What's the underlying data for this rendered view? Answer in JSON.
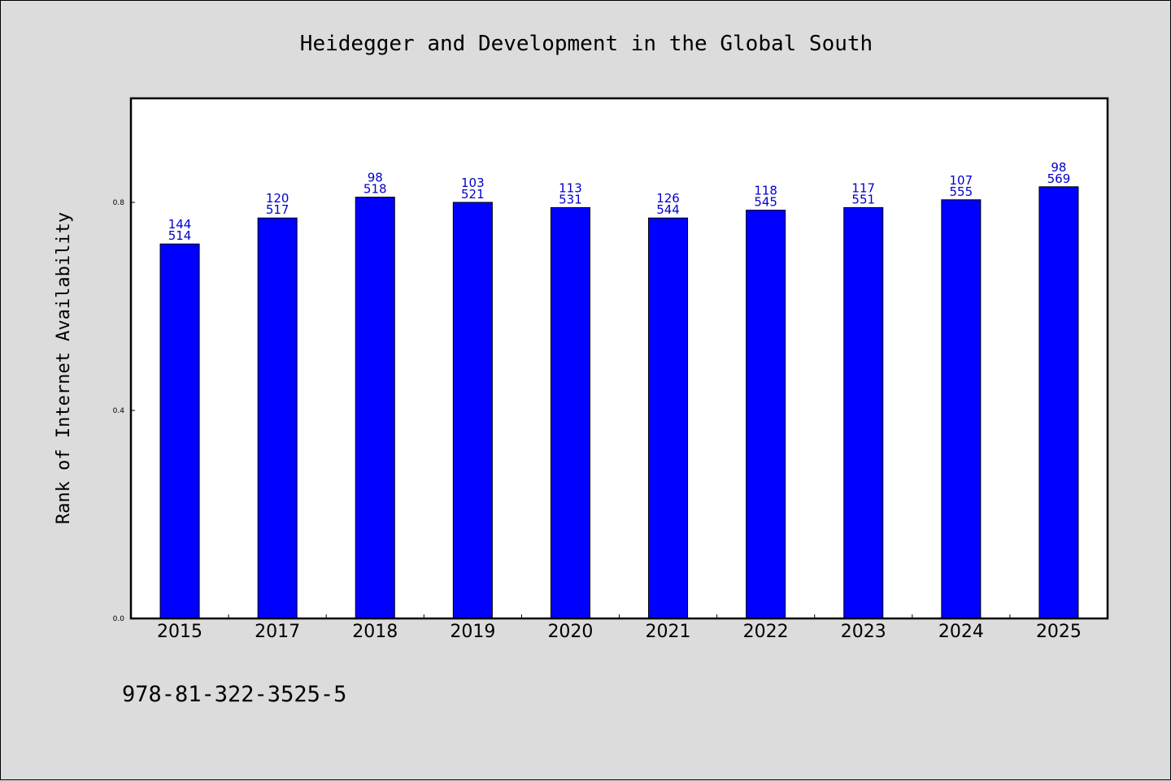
{
  "chart_data": {
    "type": "bar",
    "title": "Heidegger and Development in the Global South",
    "xlabel": "",
    "ylabel": "Rank of Internet Availability",
    "categories": [
      "2015",
      "2017",
      "2018",
      "2019",
      "2020",
      "2021",
      "2022",
      "2023",
      "2024",
      "2025"
    ],
    "values": [
      0.72,
      0.77,
      0.81,
      0.8,
      0.79,
      0.77,
      0.785,
      0.79,
      0.805,
      0.83
    ],
    "label_top": [
      "144",
      "120",
      "98",
      "103",
      "113",
      "126",
      "118",
      "117",
      "107",
      "98"
    ],
    "label_bottom": [
      "514",
      "517",
      "518",
      "521",
      "531",
      "544",
      "545",
      "551",
      "555",
      "569"
    ],
    "ylim": [
      0,
      1.0
    ],
    "yticks": [
      0.0,
      0.4,
      0.8
    ],
    "ytick_labels": [
      "0.0",
      "0.4",
      "0.8"
    ],
    "grid": false,
    "colors": {
      "bar": "#0000ff",
      "bar_edge": "#000000",
      "label": "#0000cc",
      "plot_bg": "#ffffff",
      "figure_bg": "#dcdcdc"
    }
  },
  "footer": {
    "isbn": "978-81-322-3525-5"
  }
}
